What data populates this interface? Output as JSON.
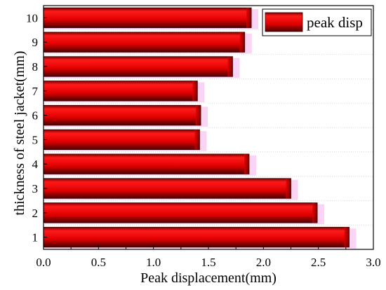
{
  "chart_data": {
    "type": "bar",
    "orientation": "horizontal",
    "categories": [
      "1",
      "2",
      "3",
      "4",
      "5",
      "6",
      "7",
      "8",
      "9",
      "10"
    ],
    "series": [
      {
        "name": "peak disp",
        "values": [
          2.78,
          2.49,
          2.25,
          1.87,
          1.42,
          1.43,
          1.4,
          1.72,
          1.83,
          1.89
        ],
        "color": "#e00000"
      }
    ],
    "xlabel": "Peak displacement(mm)",
    "ylabel": "thickness of steel jacket(mm)",
    "xlim": [
      0,
      3.0
    ],
    "xticks": [
      "0.0",
      "0.5",
      "1.0",
      "1.5",
      "2.0",
      "2.5",
      "3.0"
    ],
    "grid": true,
    "legend": "top-right"
  },
  "colors": {
    "bar": "#e00000",
    "bar_dark": "#5a0000",
    "bar_shadow": "#f7c9f3",
    "grid": "#d9d9d9",
    "axis": "#000000"
  }
}
